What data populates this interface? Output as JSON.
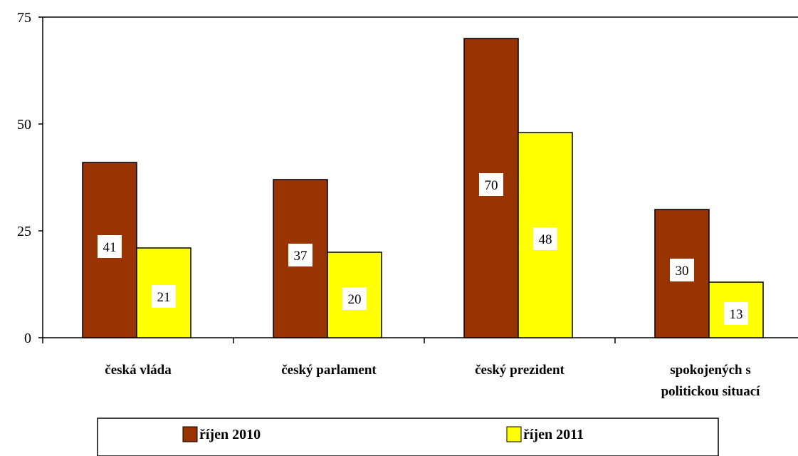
{
  "chart_data": {
    "type": "bar",
    "categories": [
      [
        "česká vláda"
      ],
      [
        "český parlament"
      ],
      [
        "český prezident"
      ],
      [
        "spokojených s",
        "politickou situací"
      ]
    ],
    "series": [
      {
        "name": "říjen 2010",
        "color": "#993300",
        "values": [
          41,
          37,
          70,
          30
        ]
      },
      {
        "name": "říjen 2011",
        "color": "#ffff00",
        "values": [
          21,
          20,
          48,
          13
        ]
      }
    ],
    "ylim": [
      0,
      75
    ],
    "yticks": [
      0,
      25,
      50,
      75
    ],
    "grid": false,
    "legend_position": "bottom"
  }
}
